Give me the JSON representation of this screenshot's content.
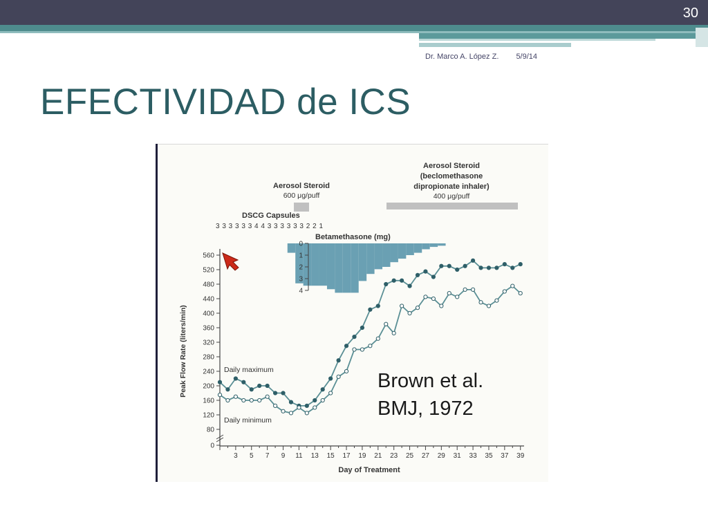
{
  "slide": {
    "number": "30",
    "author": "Dr. Marco A. López Z.",
    "date": "5/9/14",
    "title": "EFECTIVIDAD de ICS"
  },
  "chart_data": {
    "type": "line",
    "ylabel": "Peak Flow Rate (liters/min)",
    "xlabel": "Day of Treatment",
    "xlim": [
      1,
      39
    ],
    "ylim": [
      0,
      560
    ],
    "x_ticks": [
      3,
      5,
      7,
      9,
      11,
      13,
      15,
      17,
      19,
      21,
      23,
      25,
      27,
      29,
      31,
      33,
      35,
      37,
      39
    ],
    "y_ticks": [
      0,
      80,
      120,
      160,
      200,
      240,
      280,
      320,
      360,
      400,
      440,
      480,
      520,
      560
    ],
    "x": [
      1,
      2,
      3,
      4,
      5,
      6,
      7,
      8,
      9,
      10,
      11,
      12,
      13,
      14,
      15,
      16,
      17,
      18,
      19,
      20,
      21,
      22,
      23,
      24,
      25,
      26,
      27,
      28,
      29,
      30,
      31,
      32,
      33,
      34,
      35,
      36,
      37,
      38,
      39
    ],
    "series": [
      {
        "name": "Daily maximum",
        "marker": "filled",
        "values": [
          210,
          190,
          220,
          210,
          190,
          200,
          200,
          180,
          180,
          155,
          145,
          145,
          160,
          190,
          220,
          270,
          310,
          335,
          360,
          410,
          420,
          480,
          490,
          490,
          475,
          505,
          515,
          500,
          530,
          530,
          520,
          530,
          545,
          525,
          525,
          525,
          535,
          525,
          535
        ]
      },
      {
        "name": "Daily minimum",
        "marker": "open",
        "values": [
          175,
          160,
          170,
          160,
          160,
          160,
          170,
          145,
          130,
          125,
          140,
          125,
          140,
          160,
          180,
          225,
          240,
          300,
          300,
          310,
          330,
          370,
          345,
          420,
          400,
          415,
          445,
          440,
          420,
          455,
          445,
          465,
          465,
          430,
          420,
          435,
          460,
          475,
          455
        ]
      }
    ],
    "dscg": {
      "label": "DSCG  Capsules",
      "counts": "3 3 3 3 3 3 4 4 3 3 3 3 3 3 2 2 1"
    },
    "aerosol_1": {
      "label": "Aerosol Steroid",
      "dose": "600 μg/puff"
    },
    "aerosol_2": {
      "line1": "Aerosol Steroid",
      "line2": "(beclomethasone",
      "line3": "dipropionate inhaler)",
      "dose": "400 μg/puff"
    },
    "betamethasone": {
      "label": "Betamethasone (mg)",
      "ticks": [
        0,
        1,
        2,
        3,
        4
      ],
      "x_days": [
        10,
        11,
        12,
        13,
        14,
        15,
        16,
        17,
        18,
        19,
        20,
        21,
        22,
        23,
        24,
        25,
        26,
        27,
        28,
        29
      ],
      "mg": [
        0.8,
        3.4,
        3.6,
        3.6,
        3.6,
        3.9,
        4.2,
        4.2,
        4.2,
        3.2,
        2.6,
        2.2,
        2.0,
        1.6,
        1.3,
        1.0,
        0.8,
        0.5,
        0.3,
        0.2
      ]
    },
    "annotation": {
      "line1": "Brown et al.",
      "line2": "BMJ, 1972"
    },
    "colors": {
      "series": "#5a8f95",
      "bar": "#6aa0b3",
      "axis": "#444444",
      "grey_bar": "#c0c0c0",
      "cursor": "#cc2a1a"
    },
    "grid": false,
    "legend": "inline labels"
  }
}
